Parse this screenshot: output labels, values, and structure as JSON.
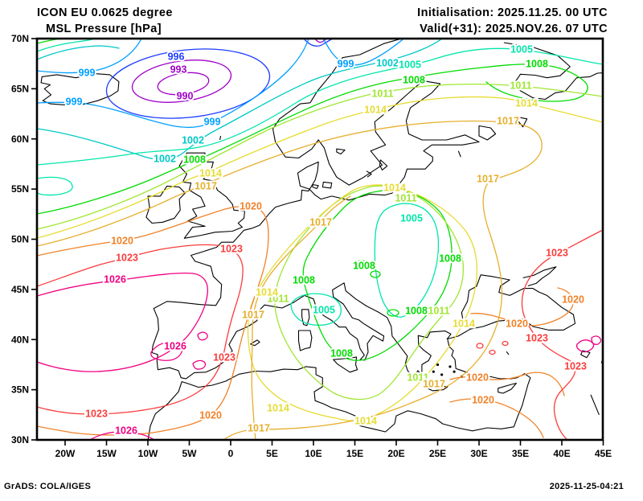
{
  "header": {
    "model": "ICON EU 0.0625 degree",
    "field": "MSL Pressure [hPa]",
    "initialisation": "Initialisation: 2025.11.25. 00 UTC",
    "valid": "Valid(+31): 2025.NOV.26. 07 UTC"
  },
  "footer": {
    "left": "GrADS: COLA/IGES",
    "right": "2025-11-25-04:21"
  },
  "axes": {
    "lat_ticks": [
      {
        "label": "70N",
        "deg": 70
      },
      {
        "label": "65N",
        "deg": 65
      },
      {
        "label": "60N",
        "deg": 60
      },
      {
        "label": "55N",
        "deg": 55
      },
      {
        "label": "50N",
        "deg": 50
      },
      {
        "label": "45N",
        "deg": 45
      },
      {
        "label": "40N",
        "deg": 40
      },
      {
        "label": "35N",
        "deg": 35
      },
      {
        "label": "30N",
        "deg": 30
      }
    ],
    "lon_ticks": [
      {
        "label": "20W",
        "deg": -20
      },
      {
        "label": "15W",
        "deg": -15
      },
      {
        "label": "10W",
        "deg": -10
      },
      {
        "label": "5W",
        "deg": -5
      },
      {
        "label": "0",
        "deg": 0
      },
      {
        "label": "5E",
        "deg": 5
      },
      {
        "label": "10E",
        "deg": 10
      },
      {
        "label": "15E",
        "deg": 15
      },
      {
        "label": "20E",
        "deg": 20
      },
      {
        "label": "25E",
        "deg": 25
      },
      {
        "label": "30E",
        "deg": 30
      },
      {
        "label": "35E",
        "deg": 35
      },
      {
        "label": "40E",
        "deg": 40
      },
      {
        "label": "45E",
        "deg": 45
      }
    ]
  },
  "chart_data": {
    "type": "contour-map",
    "title": "MSL Pressure [hPa]",
    "model": "ICON EU 0.0625 degree",
    "units": "hPa",
    "contour_interval": 3,
    "lon_range_deg": [
      -23.4,
      45
    ],
    "lat_range_deg": [
      30,
      70
    ],
    "grid": false,
    "levels": [
      {
        "value": 990,
        "color": "#a000c8"
      },
      {
        "value": 993,
        "color": "#a000c8"
      },
      {
        "value": 996,
        "color": "#1e3cff"
      },
      {
        "value": 999,
        "color": "#00a0ff"
      },
      {
        "value": 1002,
        "color": "#00c8c8"
      },
      {
        "value": 1005,
        "color": "#00e6aa"
      },
      {
        "value": 1008,
        "color": "#00dc00"
      },
      {
        "value": 1011,
        "color": "#a0e632"
      },
      {
        "value": 1014,
        "color": "#e6dc32"
      },
      {
        "value": 1017,
        "color": "#e6af2d"
      },
      {
        "value": 1020,
        "color": "#f08228"
      },
      {
        "value": 1023,
        "color": "#fa3c3c"
      },
      {
        "value": 1026,
        "color": "#f00082"
      }
    ],
    "pressure_centers": [
      {
        "type": "low",
        "value_hpa": 990,
        "location": "northeast Atlantic south of Iceland"
      },
      {
        "type": "low",
        "value_hpa": 1005,
        "location": "eastern Europe"
      },
      {
        "type": "low",
        "value_hpa": 1005,
        "location": "northwest Mediterranean / Corsica"
      },
      {
        "type": "high",
        "value_hpa": 1026,
        "location": "eastern Atlantic and Iberia"
      }
    ],
    "contour_labels": [
      [
        990,
        230,
        120
      ],
      [
        993,
        222,
        87
      ],
      [
        996,
        219,
        71
      ],
      [
        999,
        108,
        91
      ],
      [
        999,
        92,
        127
      ],
      [
        999,
        264,
        152
      ],
      [
        999,
        430,
        80
      ],
      [
        1002,
        205,
        198
      ],
      [
        1002,
        240,
        175
      ],
      [
        1002,
        482,
        79
      ],
      [
        1005,
        510,
        81
      ],
      [
        1005,
        649,
        62
      ],
      [
        1005,
        512,
        272
      ],
      [
        1005,
        403,
        386
      ],
      [
        1008,
        242,
        199
      ],
      [
        1008,
        515,
        100
      ],
      [
        1008,
        668,
        80
      ],
      [
        1008,
        560,
        322
      ],
      [
        1008,
        453,
        331
      ],
      [
        1008,
        378,
        349
      ],
      [
        1008,
        425,
        440
      ],
      [
        1008,
        518,
        387
      ],
      [
        1011,
        476,
        117
      ],
      [
        1011,
        648,
        107
      ],
      [
        1011,
        505,
        247
      ],
      [
        1011,
        546,
        387
      ],
      [
        1011,
        346,
        372
      ],
      [
        1011,
        520,
        470
      ],
      [
        1014,
        467,
        137
      ],
      [
        1014,
        655,
        129
      ],
      [
        1014,
        262,
        216
      ],
      [
        1014,
        491,
        234
      ],
      [
        1014,
        332,
        364
      ],
      [
        1014,
        346,
        508
      ],
      [
        1014,
        455,
        524
      ],
      [
        1014,
        577,
        403
      ],
      [
        1017,
        256,
        232
      ],
      [
        1017,
        399,
        277
      ],
      [
        1017,
        632,
        151
      ],
      [
        1017,
        607,
        223
      ],
      [
        1017,
        315,
        392
      ],
      [
        1017,
        322,
        533
      ],
      [
        1017,
        540,
        478
      ],
      [
        1020,
        152,
        300
      ],
      [
        1020,
        312,
        257
      ],
      [
        1020,
        262,
        517
      ],
      [
        1020,
        713,
        373
      ],
      [
        1020,
        643,
        403
      ],
      [
        1020,
        594,
        470
      ],
      [
        1020,
        601,
        498
      ],
      [
        1023,
        158,
        321
      ],
      [
        1023,
        288,
        310
      ],
      [
        1023,
        279,
        445
      ],
      [
        1023,
        120,
        515
      ],
      [
        1023,
        693,
        315
      ],
      [
        1023,
        668,
        421
      ],
      [
        1023,
        716,
        456
      ],
      [
        1026,
        143,
        348
      ],
      [
        1026,
        218,
        431
      ],
      [
        1026,
        157,
        536
      ]
    ]
  }
}
